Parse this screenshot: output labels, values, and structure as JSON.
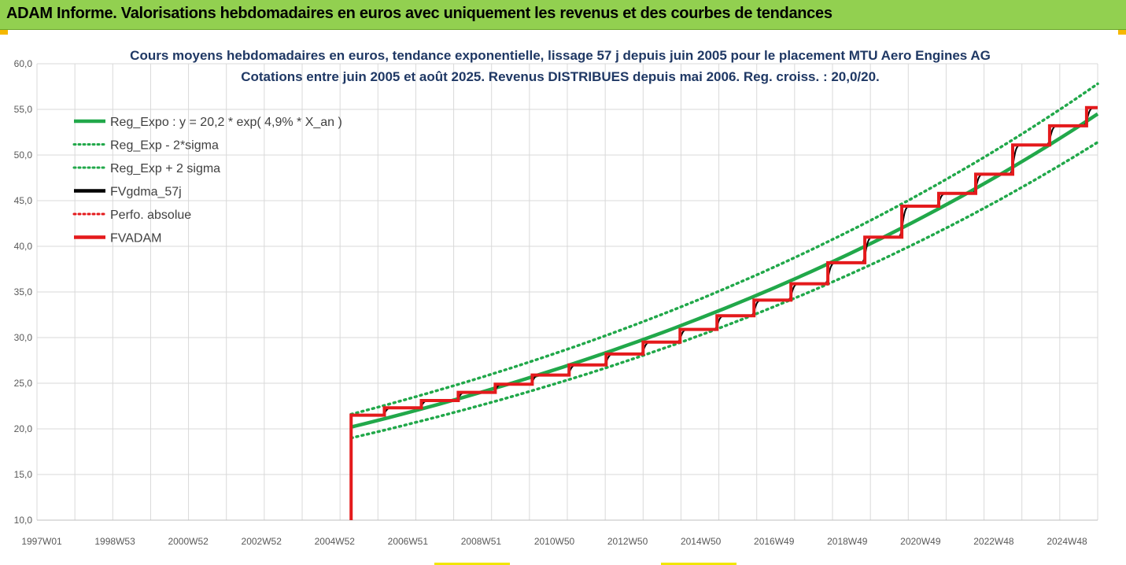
{
  "banner": {
    "title": "ADAM Informe. Valorisations hebdomadaires en euros avec uniquement les revenus et des courbes de tendances",
    "color": "#92d050"
  },
  "chart_data": {
    "type": "line",
    "title": "Cours moyens hebdomadaires en euros, tendance exponentielle, lissage 57 j depuis juin 2005 pour le placement MTU Aero Engines AG",
    "subtitle": "Cotations entre juin 2005 et août 2025. Revenus DISTRIBUES depuis mai 2006. Reg. croiss. : 20,0/20.",
    "xlabel": "",
    "ylabel": "",
    "x_range": [
      1997.0,
      2025.7
    ],
    "ylim": [
      10,
      60
    ],
    "y_ticks": [
      "10,0",
      "15,0",
      "20,0",
      "25,0",
      "30,0",
      "35,0",
      "40,0",
      "45,0",
      "50,0",
      "55,0",
      "60,0"
    ],
    "x_tick_labels": [
      "1997W01",
      "1998W53",
      "2000W52",
      "2002W52",
      "2004W52",
      "2006W51",
      "2008W51",
      "2010W50",
      "2012W50",
      "2014W50",
      "2016W49",
      "2018W49",
      "2020W49",
      "2022W48",
      "2024W48"
    ],
    "grid": true,
    "legend_position": "top-left",
    "series": [
      {
        "name": "Reg_Expo : y = 20,2 * exp( 4,9% *  X_an )",
        "color": "#21a84a",
        "style": "solid",
        "x": [
          2005.5,
          2025.7
        ],
        "y": [
          20.2,
          54.5
        ]
      },
      {
        "name": "Reg_Exp - 2*sigma",
        "color": "#21a84a",
        "style": "dotted",
        "x": [
          2005.5,
          2025.7
        ],
        "y": [
          19.0,
          51.4
        ]
      },
      {
        "name": "Reg_Exp + 2 sigma",
        "color": "#21a84a",
        "style": "dotted",
        "x": [
          2005.5,
          2025.7
        ],
        "y": [
          21.6,
          57.8
        ]
      },
      {
        "name": "FVgdma_57j",
        "color": "#000000",
        "style": "solid"
      },
      {
        "name": "Perfo. absolue",
        "color": "#e41a1c",
        "style": "dotted"
      },
      {
        "name": "FVADAM",
        "color": "#e41a1c",
        "style": "solid",
        "steps": [
          {
            "x": 2005.5,
            "y": 10.0
          },
          {
            "x": 2005.5,
            "y": 21.5
          },
          {
            "x": 2006.4,
            "y": 22.3
          },
          {
            "x": 2007.4,
            "y": 23.1
          },
          {
            "x": 2008.4,
            "y": 24.0
          },
          {
            "x": 2009.4,
            "y": 24.9
          },
          {
            "x": 2010.4,
            "y": 25.9
          },
          {
            "x": 2011.4,
            "y": 27.0
          },
          {
            "x": 2012.4,
            "y": 28.2
          },
          {
            "x": 2013.4,
            "y": 29.5
          },
          {
            "x": 2014.4,
            "y": 30.9
          },
          {
            "x": 2015.4,
            "y": 32.4
          },
          {
            "x": 2016.4,
            "y": 34.1
          },
          {
            "x": 2017.4,
            "y": 35.9
          },
          {
            "x": 2018.4,
            "y": 38.2
          },
          {
            "x": 2019.4,
            "y": 41.0
          },
          {
            "x": 2020.4,
            "y": 44.4
          },
          {
            "x": 2021.4,
            "y": 45.8
          },
          {
            "x": 2022.4,
            "y": 47.9
          },
          {
            "x": 2023.4,
            "y": 51.1
          },
          {
            "x": 2024.4,
            "y": 53.2
          },
          {
            "x": 2025.4,
            "y": 55.2
          },
          {
            "x": 2025.7,
            "y": 55.2
          }
        ]
      }
    ]
  }
}
